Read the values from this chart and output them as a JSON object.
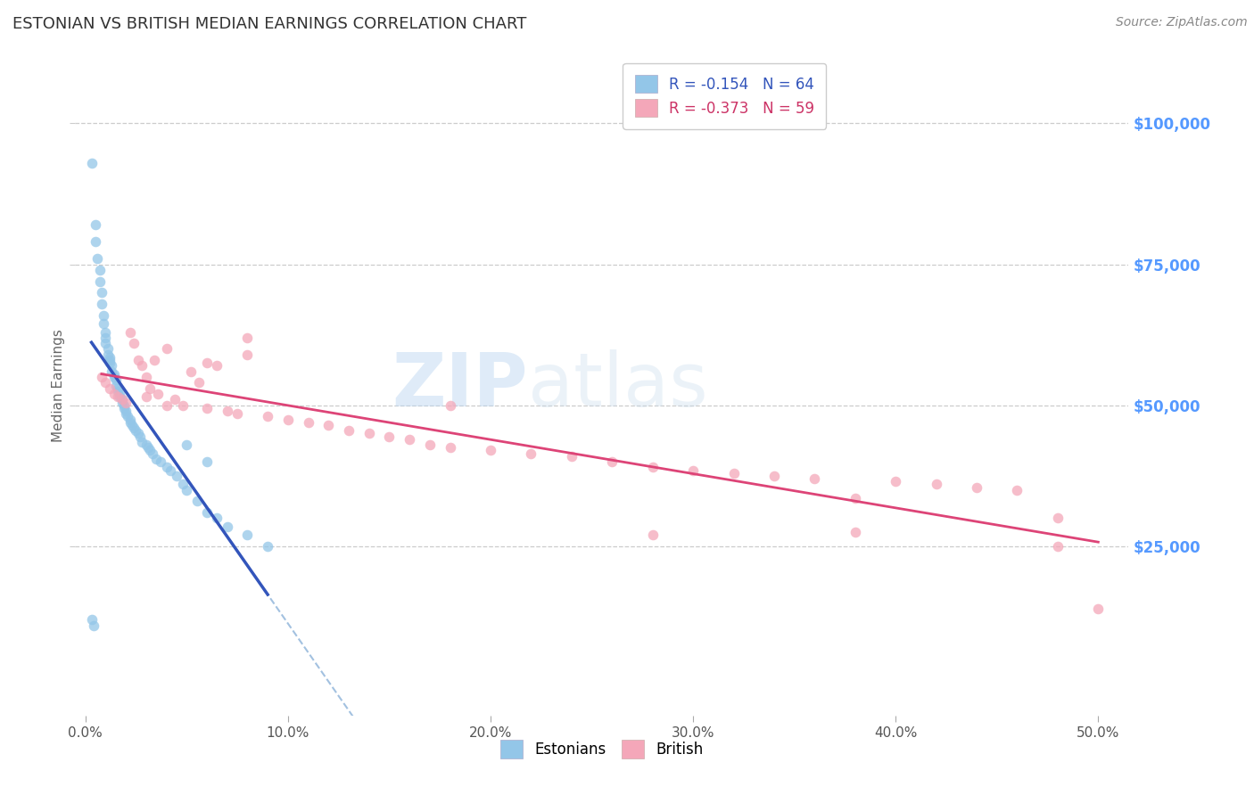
{
  "title": "ESTONIAN VS BRITISH MEDIAN EARNINGS CORRELATION CHART",
  "source": "Source: ZipAtlas.com",
  "ylabel": "Median Earnings",
  "xlim": [
    -0.005,
    0.515
  ],
  "ylim": [
    -5000,
    112000
  ],
  "estonian_color": "#93C6E8",
  "british_color": "#F4A7B9",
  "estonian_line_color": "#3355BB",
  "british_line_color": "#DD4477",
  "dashed_line_color": "#99BBDD",
  "estonian_R": -0.154,
  "estonian_N": 64,
  "british_R": -0.373,
  "british_N": 59,
  "watermark_zip": "ZIP",
  "watermark_atlas": "atlas",
  "background_color": "#ffffff",
  "grid_color": "#cccccc",
  "title_color": "#333333",
  "right_tick_color": "#5599FF",
  "estonian_x": [
    0.003,
    0.005,
    0.005,
    0.006,
    0.007,
    0.007,
    0.008,
    0.008,
    0.009,
    0.009,
    0.01,
    0.01,
    0.01,
    0.011,
    0.011,
    0.012,
    0.012,
    0.012,
    0.013,
    0.013,
    0.014,
    0.014,
    0.015,
    0.015,
    0.016,
    0.016,
    0.017,
    0.017,
    0.018,
    0.018,
    0.019,
    0.019,
    0.02,
    0.02,
    0.021,
    0.022,
    0.022,
    0.023,
    0.024,
    0.025,
    0.026,
    0.027,
    0.028,
    0.03,
    0.031,
    0.032,
    0.033,
    0.035,
    0.037,
    0.04,
    0.042,
    0.045,
    0.048,
    0.05,
    0.055,
    0.06,
    0.065,
    0.07,
    0.08,
    0.09,
    0.003,
    0.004,
    0.05,
    0.06
  ],
  "estonian_y": [
    93000,
    82000,
    79000,
    76000,
    74000,
    72000,
    70000,
    68000,
    66000,
    64500,
    63000,
    62000,
    61000,
    60000,
    59000,
    58500,
    58000,
    57500,
    57000,
    56000,
    55500,
    55000,
    54500,
    53500,
    53000,
    52500,
    52000,
    51500,
    51000,
    50500,
    50000,
    49500,
    49000,
    48500,
    48000,
    47500,
    47000,
    46500,
    46000,
    45500,
    45000,
    44500,
    43500,
    43000,
    42500,
    42000,
    41500,
    40500,
    40000,
    39000,
    38500,
    37500,
    36000,
    35000,
    33000,
    31000,
    30000,
    28500,
    27000,
    25000,
    12000,
    11000,
    43000,
    40000
  ],
  "british_x": [
    0.008,
    0.01,
    0.012,
    0.014,
    0.016,
    0.018,
    0.02,
    0.022,
    0.024,
    0.026,
    0.028,
    0.03,
    0.032,
    0.034,
    0.036,
    0.04,
    0.044,
    0.048,
    0.052,
    0.056,
    0.06,
    0.065,
    0.07,
    0.075,
    0.08,
    0.09,
    0.1,
    0.11,
    0.12,
    0.13,
    0.14,
    0.15,
    0.16,
    0.17,
    0.18,
    0.2,
    0.22,
    0.24,
    0.26,
    0.28,
    0.3,
    0.32,
    0.34,
    0.36,
    0.38,
    0.4,
    0.42,
    0.44,
    0.46,
    0.48,
    0.5,
    0.03,
    0.04,
    0.06,
    0.08,
    0.18,
    0.28,
    0.38,
    0.48
  ],
  "british_y": [
    55000,
    54000,
    53000,
    52000,
    51500,
    51000,
    50500,
    63000,
    61000,
    58000,
    57000,
    55000,
    53000,
    58000,
    52000,
    60000,
    51000,
    50000,
    56000,
    54000,
    49500,
    57000,
    49000,
    48500,
    59000,
    48000,
    47500,
    47000,
    46500,
    45500,
    45000,
    44500,
    44000,
    43000,
    42500,
    42000,
    41500,
    41000,
    40000,
    39000,
    38500,
    38000,
    37500,
    37000,
    33500,
    36500,
    36000,
    35500,
    35000,
    30000,
    14000,
    51500,
    50000,
    57500,
    62000,
    50000,
    27000,
    27500,
    25000
  ],
  "legend_label_estonian": "R = -0.154   N = 64",
  "legend_label_british": "R = -0.373   N = 59"
}
